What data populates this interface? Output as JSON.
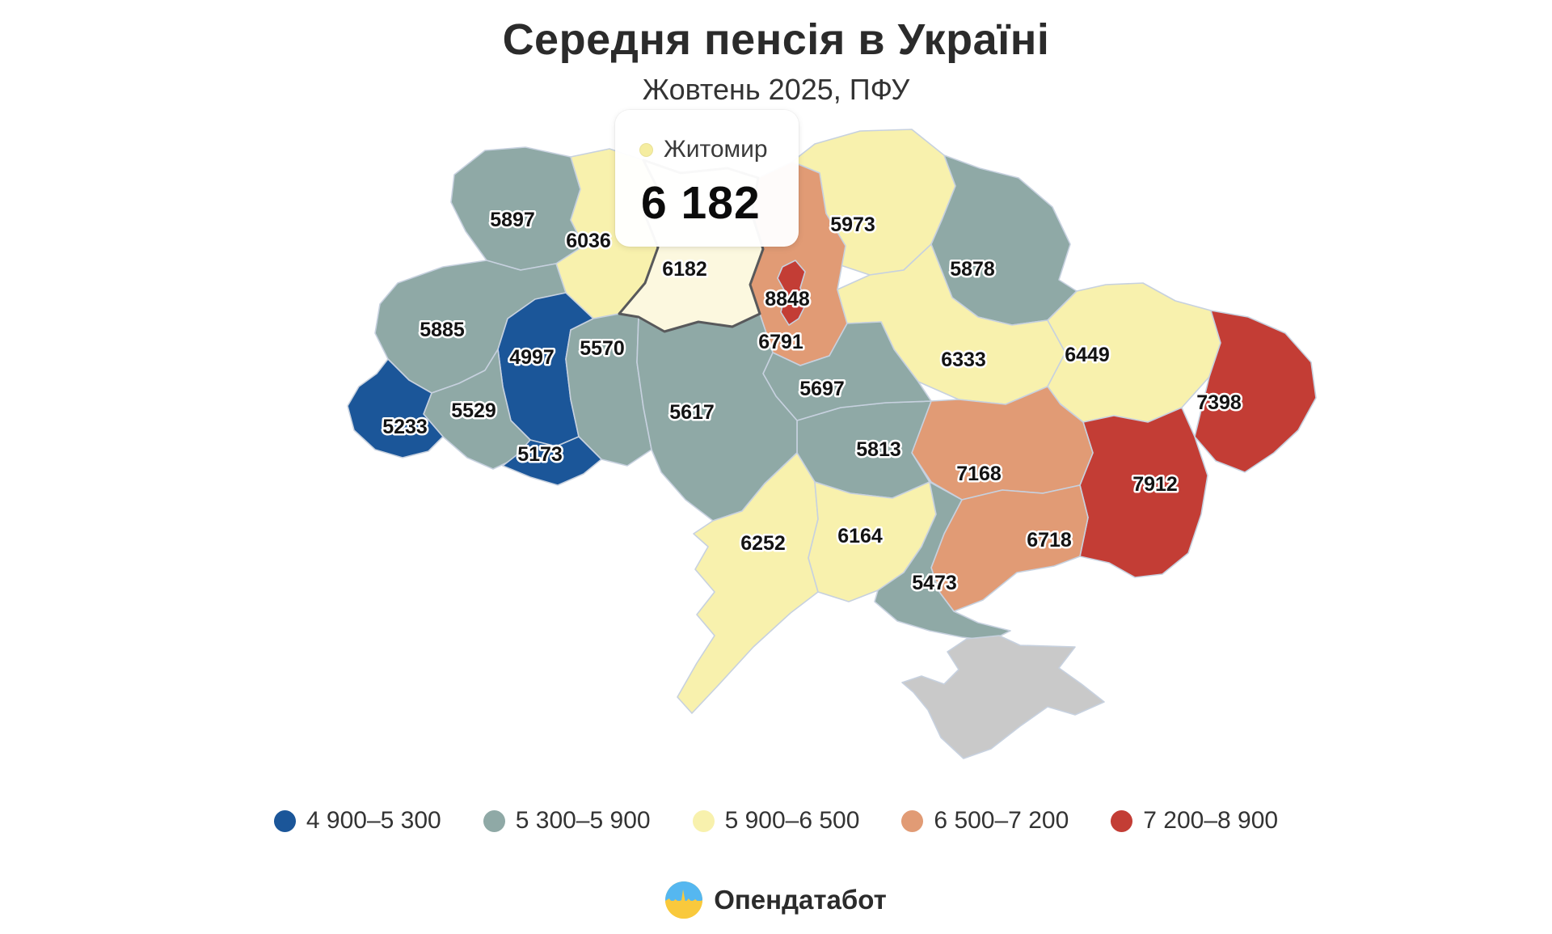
{
  "title": "Середня пенсія в Україні",
  "subtitle": "Жовтень 2025, ПФУ",
  "tooltip": {
    "region": "Житомир",
    "value": "6 182",
    "swatch_color": "#F5EDA0"
  },
  "map": {
    "border_color": "#C7D1DF",
    "highlight_border_color": "#58595B",
    "class_colors": {
      "c1": "#1B5699",
      "c2": "#8FA9A6",
      "c3": "#F8F1AD",
      "c4": "#E19B75",
      "c5": "#C33D35",
      "highlight": "#FCF8DF",
      "none": "#C9C9C9"
    },
    "regions": [
      {
        "id": "volyn",
        "value": "5897",
        "class": "c2"
      },
      {
        "id": "rivne",
        "value": "6036",
        "class": "c3"
      },
      {
        "id": "chernihiv",
        "value": "5973",
        "class": "c3"
      },
      {
        "id": "sumy",
        "value": "5878",
        "class": "c2"
      },
      {
        "id": "lviv",
        "value": "5885",
        "class": "c2"
      },
      {
        "id": "ternopil",
        "value": "4997",
        "class": "c1"
      },
      {
        "id": "khmelnytskyi",
        "value": "5570",
        "class": "c2"
      },
      {
        "id": "kyiv_oblast",
        "value": "6791",
        "class": "c4"
      },
      {
        "id": "poltava",
        "value": "6333",
        "class": "c3"
      },
      {
        "id": "kharkiv",
        "value": "6449",
        "class": "c3"
      },
      {
        "id": "luhansk",
        "value": "7398",
        "class": "c5"
      },
      {
        "id": "donetsk",
        "value": "7912",
        "class": "c5"
      },
      {
        "id": "dnipro",
        "value": "7168",
        "class": "c4"
      },
      {
        "id": "zaporizhzhia",
        "value": "6718",
        "class": "c4"
      },
      {
        "id": "kirovohrad",
        "value": "5813",
        "class": "c2"
      },
      {
        "id": "cherkasy",
        "value": "5697",
        "class": "c2"
      },
      {
        "id": "vinnytsia",
        "value": "5617",
        "class": "c2"
      },
      {
        "id": "ivano_frankivsk",
        "value": "5529",
        "class": "c2"
      },
      {
        "id": "zakarpattia",
        "value": "5233",
        "class": "c1"
      },
      {
        "id": "chernivtsi",
        "value": "5173",
        "class": "c1"
      },
      {
        "id": "odesa",
        "value": "6252",
        "class": "c3"
      },
      {
        "id": "mykolaiv",
        "value": "6164",
        "class": "c3"
      },
      {
        "id": "kherson",
        "value": "5473",
        "class": "c2"
      },
      {
        "id": "crimea",
        "value": "",
        "class": "none"
      },
      {
        "id": "kyiv_city",
        "value": "8848",
        "class": "c5"
      },
      {
        "id": "zhytomyr",
        "value": "6182",
        "class": "c3",
        "highlighted": true
      }
    ]
  },
  "legend": {
    "items": [
      {
        "label": "4 900–5 300",
        "color": "#1B5699"
      },
      {
        "label": "5 300–5 900",
        "color": "#8FA9A6"
      },
      {
        "label": "5 900–6 500",
        "color": "#F8F1AD"
      },
      {
        "label": "6 500–7 200",
        "color": "#E19B75"
      },
      {
        "label": "7 200–8 900",
        "color": "#C33D35"
      }
    ]
  },
  "footer": {
    "brand": "Опендатабот"
  }
}
